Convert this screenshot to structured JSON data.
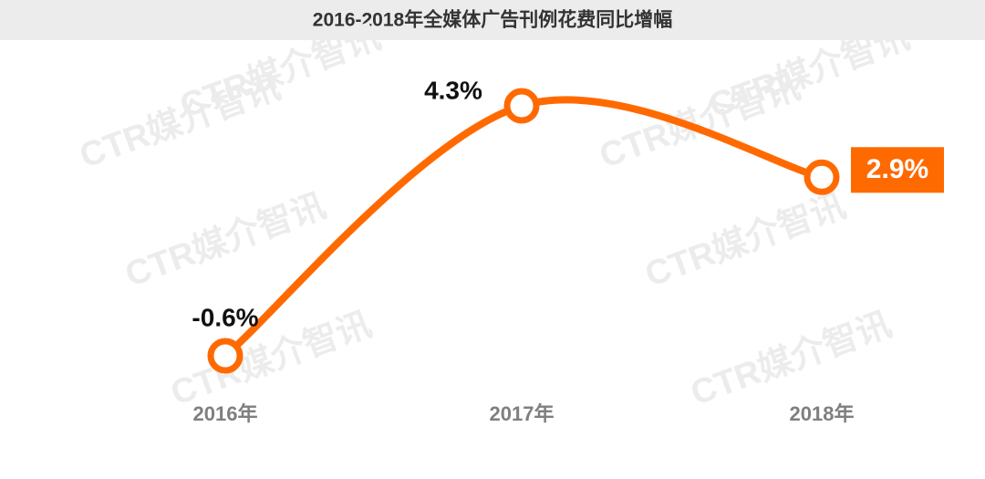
{
  "chart_data": {
    "type": "line",
    "title": "2016-2018年全媒体广告刊例花费同比增幅",
    "watermark": "CTR媒介智讯",
    "categories": [
      "2016年",
      "2017年",
      "2018年"
    ],
    "series": [
      {
        "color": "#ff6a00",
        "values": [
          -0.6,
          4.3,
          2.9
        ],
        "value_labels": [
          "-0.6%",
          "4.3%",
          "2.9%"
        ]
      }
    ]
  }
}
